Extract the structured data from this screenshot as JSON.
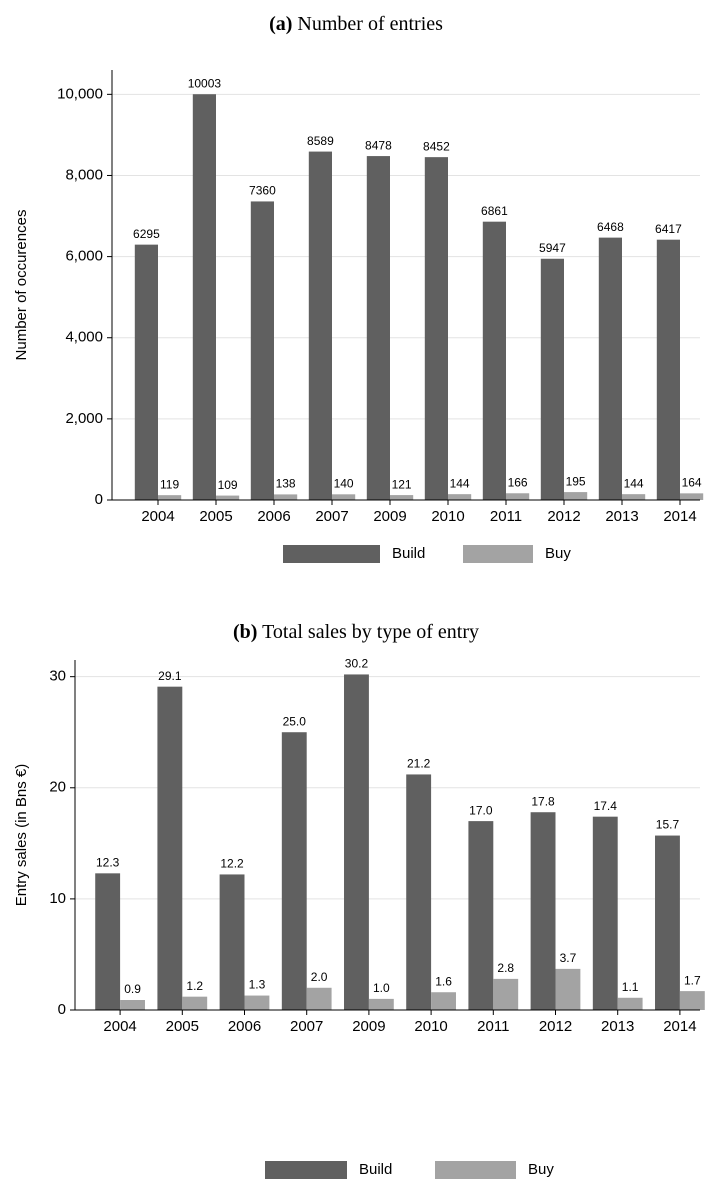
{
  "chart_data": [
    {
      "type": "bar",
      "panel": "(a)",
      "title": "Number of entries",
      "ylabel": "Number of occurences",
      "categories": [
        "2004",
        "2005",
        "2006",
        "2007",
        "2009",
        "2010",
        "2011",
        "2012",
        "2013",
        "2014"
      ],
      "series": [
        {
          "name": "Build",
          "color": "#606060",
          "values": [
            6295,
            10003,
            7360,
            8589,
            8478,
            8452,
            6861,
            5947,
            6468,
            6417
          ]
        },
        {
          "name": "Buy",
          "color": "#a3a3a3",
          "values": [
            119,
            109,
            138,
            140,
            121,
            144,
            166,
            195,
            144,
            164
          ]
        }
      ],
      "ylim": [
        0,
        10600
      ],
      "yticks": [
        0,
        {
          "value": 2000,
          "label": "2,000"
        },
        {
          "value": 4000,
          "label": "4,000"
        },
        {
          "value": 6000,
          "label": "6,000"
        },
        {
          "value": 8000,
          "label": "8,000"
        },
        {
          "value": 10000,
          "label": "10,000"
        }
      ],
      "grid": true,
      "legend": "bottom"
    },
    {
      "type": "bar",
      "panel": "(b)",
      "title": "Total sales by type of entry",
      "ylabel": "Entry sales (in Bns €)",
      "categories": [
        "2004",
        "2005",
        "2006",
        "2007",
        "2009",
        "2010",
        "2011",
        "2012",
        "2013",
        "2014"
      ],
      "series": [
        {
          "name": "Build",
          "color": "#606060",
          "values": [
            12.3,
            29.1,
            12.2,
            25.0,
            30.2,
            21.2,
            17.0,
            17.8,
            17.4,
            15.7
          ],
          "value_labels": [
            "12.3",
            "29.1",
            "12.2",
            "25.0",
            "30.2",
            "21.2",
            "17.0",
            "17.8",
            "17.4",
            "15.7"
          ]
        },
        {
          "name": "Buy",
          "color": "#a3a3a3",
          "values": [
            0.9,
            1.2,
            1.3,
            2.0,
            1.0,
            1.6,
            2.8,
            3.7,
            1.1,
            1.7
          ],
          "value_labels": [
            "0.9",
            "1.2",
            "1.3",
            "2.0",
            "1.0",
            "1.6",
            "2.8",
            "3.7",
            "1.1",
            "1.7"
          ]
        }
      ],
      "ylim": [
        0,
        31.5
      ],
      "yticks": [
        0,
        10,
        20,
        30
      ],
      "grid": true,
      "legend": "bottom"
    }
  ]
}
